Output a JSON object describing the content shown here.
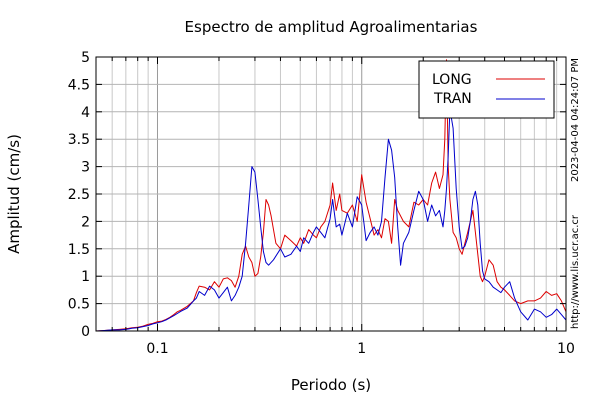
{
  "chart_data": {
    "type": "line",
    "title": "Espectro de amplitud Agroalimentarias",
    "xlabel": "Periodo (s)",
    "ylabel": "Amplitud (cm/s)",
    "xscale": "log",
    "xlim": [
      0.05,
      10
    ],
    "ylim": [
      0,
      5
    ],
    "x_tick_labels": [
      {
        "value": 0.1,
        "label": "0.1"
      },
      {
        "value": 1,
        "label": "1"
      },
      {
        "value": 10,
        "label": "10"
      }
    ],
    "y_ticks": [
      0,
      0.5,
      1,
      1.5,
      2,
      2.5,
      3,
      3.5,
      4,
      4.5,
      5
    ],
    "y_tick_labels": [
      "0",
      "0.5",
      "1",
      "1.5",
      "2",
      "2.5",
      "3",
      "3.5",
      "4",
      "4.5",
      "5"
    ],
    "grid": true,
    "legend_position": "top-right",
    "annotation_timestamp": "2023-04-04 04:24:07 PM",
    "annotation_url": "http://www.lis.ucr.ac.cr",
    "series": [
      {
        "name": "LONG",
        "color": "#dd0000",
        "points": [
          [
            0.05,
            0.0
          ],
          [
            0.055,
            0.01
          ],
          [
            0.06,
            0.02
          ],
          [
            0.065,
            0.03
          ],
          [
            0.07,
            0.04
          ],
          [
            0.075,
            0.06
          ],
          [
            0.08,
            0.07
          ],
          [
            0.085,
            0.09
          ],
          [
            0.09,
            0.12
          ],
          [
            0.095,
            0.14
          ],
          [
            0.1,
            0.17
          ],
          [
            0.105,
            0.18
          ],
          [
            0.11,
            0.21
          ],
          [
            0.115,
            0.25
          ],
          [
            0.12,
            0.3
          ],
          [
            0.125,
            0.35
          ],
          [
            0.13,
            0.38
          ],
          [
            0.14,
            0.45
          ],
          [
            0.15,
            0.55
          ],
          [
            0.155,
            0.7
          ],
          [
            0.16,
            0.82
          ],
          [
            0.17,
            0.8
          ],
          [
            0.18,
            0.75
          ],
          [
            0.19,
            0.9
          ],
          [
            0.2,
            0.8
          ],
          [
            0.21,
            0.95
          ],
          [
            0.22,
            0.97
          ],
          [
            0.23,
            0.92
          ],
          [
            0.24,
            0.8
          ],
          [
            0.25,
            1.0
          ],
          [
            0.26,
            1.4
          ],
          [
            0.27,
            1.55
          ],
          [
            0.28,
            1.35
          ],
          [
            0.29,
            1.25
          ],
          [
            0.3,
            1.0
          ],
          [
            0.31,
            1.05
          ],
          [
            0.32,
            1.35
          ],
          [
            0.33,
            1.8
          ],
          [
            0.34,
            2.4
          ],
          [
            0.35,
            2.3
          ],
          [
            0.36,
            2.1
          ],
          [
            0.38,
            1.6
          ],
          [
            0.4,
            1.5
          ],
          [
            0.42,
            1.75
          ],
          [
            0.45,
            1.65
          ],
          [
            0.48,
            1.55
          ],
          [
            0.5,
            1.7
          ],
          [
            0.52,
            1.6
          ],
          [
            0.55,
            1.85
          ],
          [
            0.58,
            1.75
          ],
          [
            0.6,
            1.7
          ],
          [
            0.63,
            1.9
          ],
          [
            0.66,
            2.0
          ],
          [
            0.7,
            2.3
          ],
          [
            0.72,
            2.7
          ],
          [
            0.75,
            2.2
          ],
          [
            0.78,
            2.5
          ],
          [
            0.8,
            2.2
          ],
          [
            0.85,
            2.15
          ],
          [
            0.9,
            2.3
          ],
          [
            0.95,
            2.0
          ],
          [
            1.0,
            2.85
          ],
          [
            1.05,
            2.35
          ],
          [
            1.1,
            2.05
          ],
          [
            1.15,
            1.75
          ],
          [
            1.2,
            1.85
          ],
          [
            1.25,
            1.7
          ],
          [
            1.3,
            2.05
          ],
          [
            1.35,
            2.0
          ],
          [
            1.4,
            1.6
          ],
          [
            1.45,
            2.4
          ],
          [
            1.5,
            2.2
          ],
          [
            1.6,
            2.0
          ],
          [
            1.7,
            1.9
          ],
          [
            1.8,
            2.35
          ],
          [
            1.9,
            2.3
          ],
          [
            2.0,
            2.4
          ],
          [
            2.1,
            2.3
          ],
          [
            2.2,
            2.7
          ],
          [
            2.3,
            2.9
          ],
          [
            2.4,
            2.6
          ],
          [
            2.5,
            2.85
          ],
          [
            2.55,
            3.5
          ],
          [
            2.6,
            4.95
          ],
          [
            2.65,
            3.0
          ],
          [
            2.7,
            2.4
          ],
          [
            2.8,
            1.8
          ],
          [
            2.9,
            1.7
          ],
          [
            3.0,
            1.5
          ],
          [
            3.1,
            1.4
          ],
          [
            3.2,
            1.6
          ],
          [
            3.3,
            1.8
          ],
          [
            3.4,
            2.0
          ],
          [
            3.5,
            2.2
          ],
          [
            3.6,
            1.8
          ],
          [
            3.7,
            1.4
          ],
          [
            3.8,
            1.0
          ],
          [
            3.9,
            0.9
          ],
          [
            4.0,
            1.0
          ],
          [
            4.2,
            1.3
          ],
          [
            4.4,
            1.2
          ],
          [
            4.6,
            0.9
          ],
          [
            4.8,
            0.8
          ],
          [
            5.0,
            0.75
          ],
          [
            5.3,
            0.65
          ],
          [
            5.6,
            0.55
          ],
          [
            6.0,
            0.5
          ],
          [
            6.5,
            0.55
          ],
          [
            7.0,
            0.55
          ],
          [
            7.5,
            0.6
          ],
          [
            8.0,
            0.72
          ],
          [
            8.5,
            0.65
          ],
          [
            9.0,
            0.68
          ],
          [
            9.5,
            0.55
          ],
          [
            10,
            0.35
          ]
        ]
      },
      {
        "name": "TRAN",
        "color": "#0000cc",
        "points": [
          [
            0.05,
            0.0
          ],
          [
            0.055,
            0.01
          ],
          [
            0.06,
            0.02
          ],
          [
            0.065,
            0.02
          ],
          [
            0.07,
            0.03
          ],
          [
            0.075,
            0.05
          ],
          [
            0.08,
            0.06
          ],
          [
            0.085,
            0.08
          ],
          [
            0.09,
            0.1
          ],
          [
            0.095,
            0.13
          ],
          [
            0.1,
            0.15
          ],
          [
            0.105,
            0.17
          ],
          [
            0.11,
            0.2
          ],
          [
            0.115,
            0.24
          ],
          [
            0.12,
            0.28
          ],
          [
            0.125,
            0.32
          ],
          [
            0.13,
            0.36
          ],
          [
            0.14,
            0.42
          ],
          [
            0.15,
            0.55
          ],
          [
            0.155,
            0.6
          ],
          [
            0.16,
            0.72
          ],
          [
            0.17,
            0.65
          ],
          [
            0.18,
            0.82
          ],
          [
            0.19,
            0.75
          ],
          [
            0.2,
            0.6
          ],
          [
            0.21,
            0.7
          ],
          [
            0.22,
            0.8
          ],
          [
            0.23,
            0.55
          ],
          [
            0.24,
            0.65
          ],
          [
            0.25,
            0.8
          ],
          [
            0.26,
            1.0
          ],
          [
            0.27,
            1.6
          ],
          [
            0.28,
            2.3
          ],
          [
            0.29,
            3.0
          ],
          [
            0.3,
            2.9
          ],
          [
            0.31,
            2.4
          ],
          [
            0.32,
            1.9
          ],
          [
            0.33,
            1.45
          ],
          [
            0.34,
            1.25
          ],
          [
            0.35,
            1.2
          ],
          [
            0.37,
            1.3
          ],
          [
            0.4,
            1.5
          ],
          [
            0.42,
            1.35
          ],
          [
            0.45,
            1.4
          ],
          [
            0.48,
            1.55
          ],
          [
            0.5,
            1.45
          ],
          [
            0.52,
            1.7
          ],
          [
            0.55,
            1.6
          ],
          [
            0.58,
            1.8
          ],
          [
            0.6,
            1.9
          ],
          [
            0.63,
            1.8
          ],
          [
            0.66,
            1.7
          ],
          [
            0.7,
            2.05
          ],
          [
            0.72,
            2.4
          ],
          [
            0.75,
            1.9
          ],
          [
            0.78,
            1.95
          ],
          [
            0.8,
            1.75
          ],
          [
            0.85,
            2.15
          ],
          [
            0.9,
            1.9
          ],
          [
            0.95,
            2.45
          ],
          [
            1.0,
            2.3
          ],
          [
            1.05,
            1.65
          ],
          [
            1.1,
            1.8
          ],
          [
            1.15,
            1.9
          ],
          [
            1.2,
            1.75
          ],
          [
            1.25,
            2.0
          ],
          [
            1.3,
            2.8
          ],
          [
            1.35,
            3.5
          ],
          [
            1.4,
            3.3
          ],
          [
            1.45,
            2.8
          ],
          [
            1.5,
            1.9
          ],
          [
            1.55,
            1.2
          ],
          [
            1.6,
            1.6
          ],
          [
            1.7,
            1.8
          ],
          [
            1.8,
            2.2
          ],
          [
            1.9,
            2.55
          ],
          [
            2.0,
            2.4
          ],
          [
            2.1,
            2.0
          ],
          [
            2.2,
            2.3
          ],
          [
            2.3,
            2.1
          ],
          [
            2.4,
            2.2
          ],
          [
            2.5,
            1.9
          ],
          [
            2.55,
            2.2
          ],
          [
            2.6,
            2.6
          ],
          [
            2.65,
            3.2
          ],
          [
            2.7,
            4.05
          ],
          [
            2.8,
            3.7
          ],
          [
            2.9,
            2.6
          ],
          [
            3.0,
            1.9
          ],
          [
            3.1,
            1.5
          ],
          [
            3.2,
            1.55
          ],
          [
            3.3,
            1.7
          ],
          [
            3.4,
            2.0
          ],
          [
            3.5,
            2.4
          ],
          [
            3.6,
            2.55
          ],
          [
            3.7,
            2.3
          ],
          [
            3.8,
            1.6
          ],
          [
            3.9,
            1.1
          ],
          [
            4.0,
            0.95
          ],
          [
            4.2,
            0.9
          ],
          [
            4.4,
            0.8
          ],
          [
            4.6,
            0.75
          ],
          [
            4.8,
            0.7
          ],
          [
            5.0,
            0.8
          ],
          [
            5.3,
            0.9
          ],
          [
            5.6,
            0.6
          ],
          [
            6.0,
            0.35
          ],
          [
            6.5,
            0.2
          ],
          [
            7.0,
            0.4
          ],
          [
            7.5,
            0.35
          ],
          [
            8.0,
            0.25
          ],
          [
            8.5,
            0.3
          ],
          [
            9.0,
            0.4
          ],
          [
            9.5,
            0.3
          ],
          [
            10,
            0.2
          ]
        ]
      }
    ]
  }
}
